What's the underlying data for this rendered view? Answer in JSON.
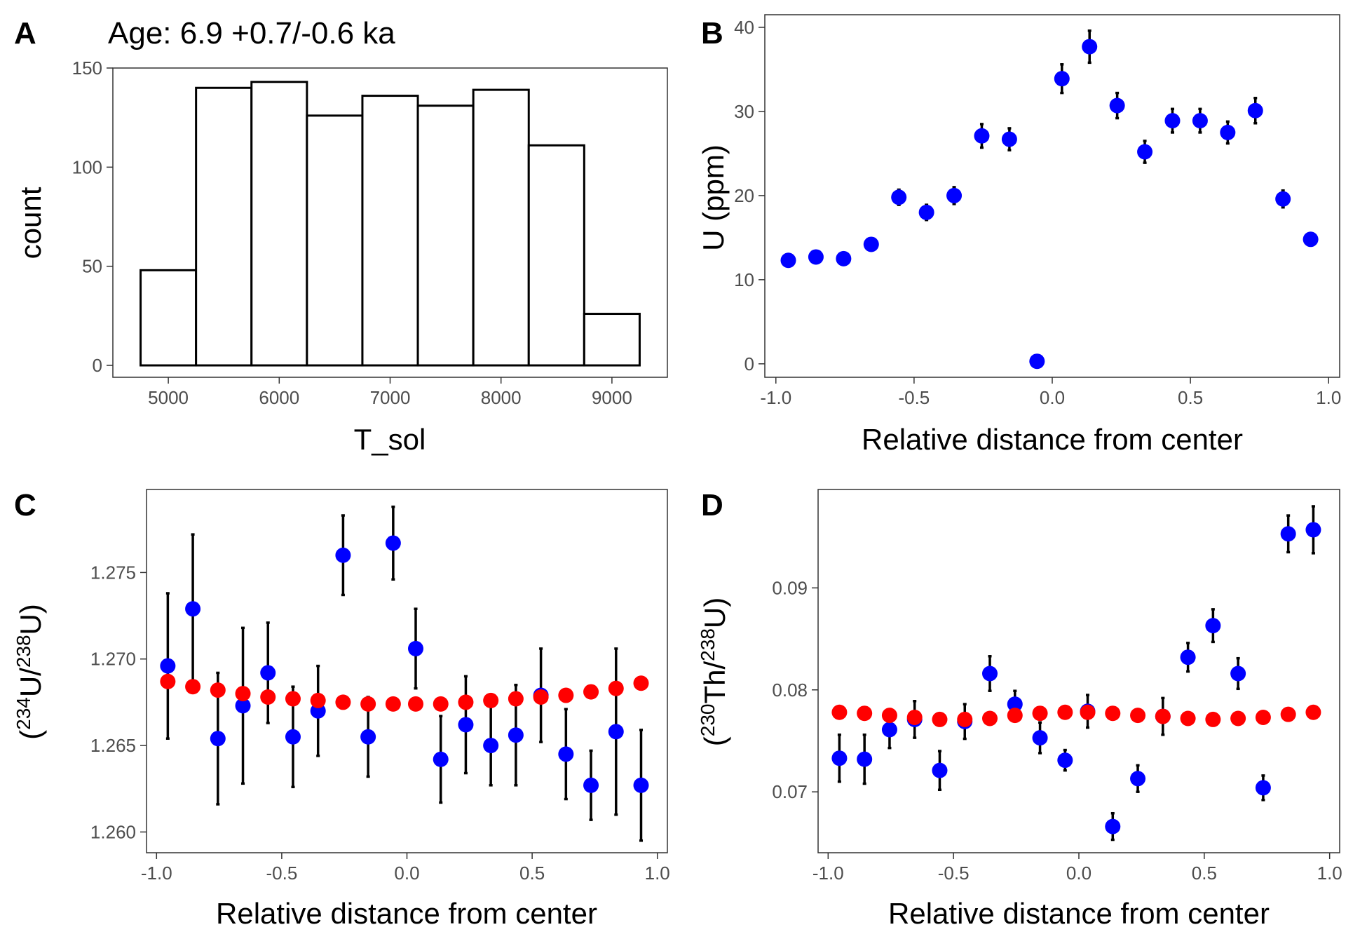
{
  "chart_data": [
    {
      "panel": "A",
      "type": "bar",
      "title": "Age: 6.9 +0.7/-0.6 ka",
      "xlabel": "T_sol",
      "ylabel": "count",
      "bin_edges": [
        4750,
        5250,
        5750,
        6250,
        6750,
        7250,
        7750,
        8250,
        8750,
        9250
      ],
      "values": [
        48,
        140,
        143,
        126,
        136,
        131,
        139,
        111,
        26
      ],
      "xlim": [
        4500,
        9500
      ],
      "ylim": [
        -6,
        150
      ],
      "xticks": [
        5000,
        6000,
        7000,
        8000,
        9000
      ],
      "xtick_labels": [
        "5000",
        "6000",
        "7000",
        "8000",
        "9000"
      ],
      "yticks": [
        0,
        50,
        100,
        150
      ],
      "ytick_labels": [
        "0",
        "50",
        "100",
        "150"
      ]
    },
    {
      "panel": "B",
      "type": "scatter",
      "xlabel": "Relative distance from center",
      "ylabel": "U (ppm)",
      "xlim": [
        -1.04,
        1.04
      ],
      "ylim": [
        -1.6,
        41.5
      ],
      "xticks": [
        -1.0,
        -0.5,
        0.0,
        0.5,
        1.0
      ],
      "xtick_labels": [
        "-1.0",
        "-0.5",
        "0.0",
        "0.5",
        "1.0"
      ],
      "yticks": [
        0,
        10,
        20,
        30,
        40
      ],
      "ytick_labels": [
        "0",
        "10",
        "20",
        "30",
        "40"
      ],
      "series": [
        {
          "color": "#0000ff",
          "x": [
            -0.955,
            -0.855,
            -0.755,
            -0.655,
            -0.555,
            -0.455,
            -0.355,
            -0.255,
            -0.155,
            -0.055,
            0.035,
            0.135,
            0.235,
            0.335,
            0.435,
            0.535,
            0.635,
            0.735,
            0.835,
            0.935
          ],
          "y": [
            12.3,
            12.7,
            12.5,
            14.2,
            19.8,
            18.0,
            20.0,
            27.1,
            26.7,
            0.3,
            33.9,
            37.7,
            30.7,
            25.2,
            28.9,
            28.9,
            27.5,
            30.1,
            19.6,
            14.8
          ],
          "err": [
            0.3,
            0.3,
            0.3,
            0.4,
            0.9,
            0.9,
            1.0,
            1.4,
            1.3,
            0.1,
            1.7,
            1.9,
            1.5,
            1.3,
            1.4,
            1.4,
            1.3,
            1.5,
            1.0,
            0.5
          ]
        }
      ]
    },
    {
      "panel": "C",
      "type": "scatter",
      "xlabel": "Relative distance from center",
      "ylabel_parts": {
        "open": "(",
        "sup1": "234",
        "base1": "U/",
        "sup2": "238",
        "base2": "U)"
      },
      "xlim": [
        -1.04,
        1.04
      ],
      "ylim": [
        1.2588,
        1.2798
      ],
      "xticks": [
        -1.0,
        -0.5,
        0.0,
        0.5,
        1.0
      ],
      "xtick_labels": [
        "-1.0",
        "-0.5",
        "0.0",
        "0.5",
        "1.0"
      ],
      "yticks": [
        1.26,
        1.265,
        1.27,
        1.275
      ],
      "ytick_labels": [
        "1.260",
        "1.265",
        "1.270",
        "1.275"
      ],
      "series": [
        {
          "color": "#0000ff",
          "x": [
            -0.955,
            -0.855,
            -0.755,
            -0.655,
            -0.555,
            -0.455,
            -0.355,
            -0.255,
            -0.155,
            -0.055,
            0.035,
            0.135,
            0.235,
            0.335,
            0.435,
            0.535,
            0.635,
            0.735,
            0.835,
            0.935
          ],
          "y": [
            1.2696,
            1.2729,
            1.2654,
            1.2673,
            1.2692,
            1.2655,
            1.267,
            1.276,
            1.2655,
            1.2767,
            1.2706,
            1.2642,
            1.2662,
            1.265,
            1.2656,
            1.2679,
            1.2645,
            1.2627,
            1.2658,
            1.2627
          ],
          "err": [
            0.0042,
            0.0043,
            0.0038,
            0.0045,
            0.0029,
            0.0029,
            0.0026,
            0.0023,
            0.0023,
            0.0021,
            0.0023,
            0.0025,
            0.0028,
            0.0023,
            0.0029,
            0.0027,
            0.0026,
            0.002,
            0.0048,
            0.0032
          ]
        },
        {
          "color": "#ff0000",
          "x": [
            -0.955,
            -0.855,
            -0.755,
            -0.655,
            -0.555,
            -0.455,
            -0.355,
            -0.255,
            -0.155,
            -0.055,
            0.035,
            0.135,
            0.235,
            0.335,
            0.435,
            0.535,
            0.635,
            0.735,
            0.835,
            0.935
          ],
          "y": [
            1.2687,
            1.2684,
            1.2682,
            1.268,
            1.2678,
            1.2677,
            1.2676,
            1.2675,
            1.2674,
            1.2674,
            1.2674,
            1.2674,
            1.2675,
            1.2676,
            1.2677,
            1.2678,
            1.2679,
            1.2681,
            1.2683,
            1.2686
          ]
        }
      ]
    },
    {
      "panel": "D",
      "type": "scatter",
      "xlabel": "Relative distance from center",
      "ylabel_parts": {
        "open": "(",
        "sup1": "230",
        "base1": "Th/",
        "sup2": "238",
        "base2": "U)"
      },
      "xlim": [
        -1.04,
        1.04
      ],
      "ylim": [
        0.06403,
        0.09965
      ],
      "xticks": [
        -1.0,
        -0.5,
        0.0,
        0.5,
        1.0
      ],
      "xtick_labels": [
        "-1.0",
        "-0.5",
        "0.0",
        "0.5",
        "1.0"
      ],
      "yticks": [
        0.07,
        0.08,
        0.09
      ],
      "ytick_labels": [
        "0.07",
        "0.08",
        "0.09"
      ],
      "series": [
        {
          "color": "#0000ff",
          "x": [
            -0.955,
            -0.855,
            -0.755,
            -0.655,
            -0.555,
            -0.455,
            -0.355,
            -0.255,
            -0.155,
            -0.055,
            0.035,
            0.135,
            0.235,
            0.335,
            0.435,
            0.535,
            0.635,
            0.735,
            0.835,
            0.935
          ],
          "y": [
            0.0733,
            0.0732,
            0.0761,
            0.0771,
            0.0721,
            0.0769,
            0.0816,
            0.0786,
            0.0753,
            0.0731,
            0.0779,
            0.0666,
            0.0713,
            0.0774,
            0.0832,
            0.0863,
            0.0816,
            0.0704,
            0.0953,
            0.0957
          ],
          "err": [
            0.0023,
            0.0024,
            0.0018,
            0.0018,
            0.0019,
            0.0017,
            0.0017,
            0.0013,
            0.0015,
            0.001,
            0.0016,
            0.0013,
            0.0013,
            0.0018,
            0.0014,
            0.0016,
            0.0015,
            0.0012,
            0.0018,
            0.0023
          ]
        },
        {
          "color": "#ff0000",
          "x": [
            -0.955,
            -0.855,
            -0.755,
            -0.655,
            -0.555,
            -0.455,
            -0.355,
            -0.255,
            -0.155,
            -0.055,
            0.035,
            0.135,
            0.235,
            0.335,
            0.435,
            0.535,
            0.635,
            0.735,
            0.835,
            0.935
          ],
          "y": [
            0.0778,
            0.0777,
            0.0775,
            0.0773,
            0.0771,
            0.0771,
            0.0772,
            0.0775,
            0.0777,
            0.0778,
            0.0778,
            0.0777,
            0.0775,
            0.0774,
            0.0772,
            0.0771,
            0.0772,
            0.0773,
            0.0776,
            0.0778
          ]
        }
      ]
    }
  ]
}
